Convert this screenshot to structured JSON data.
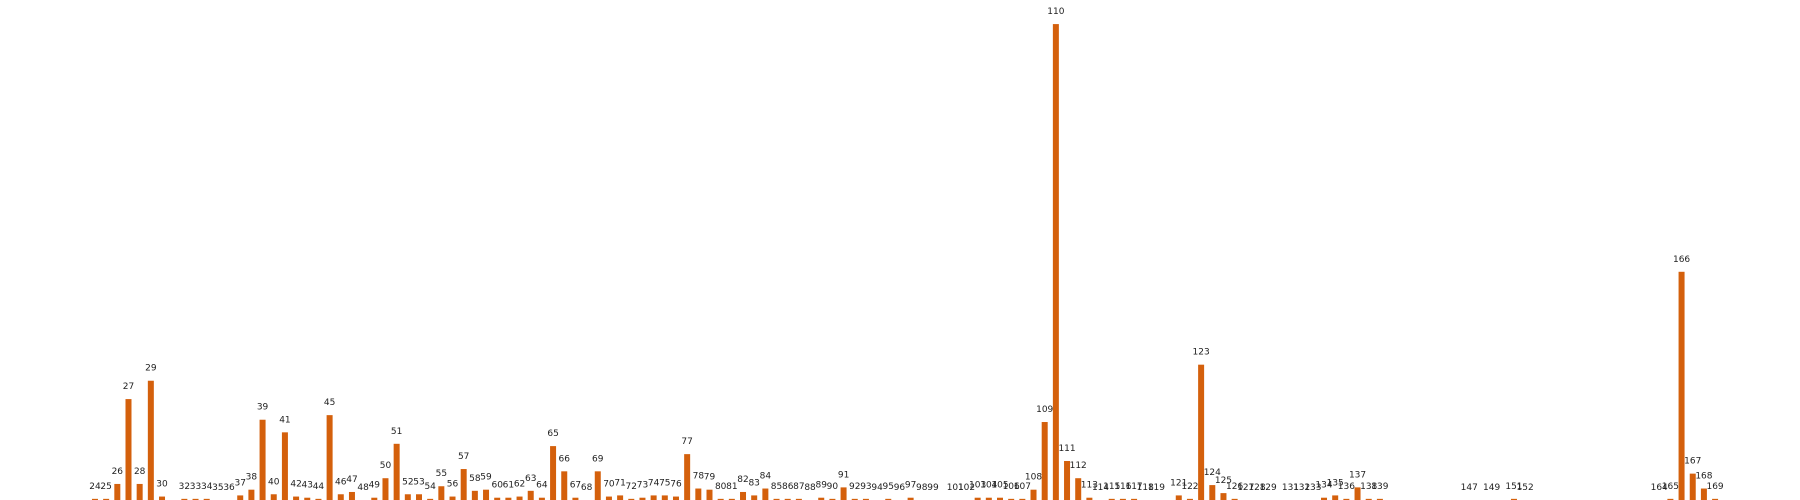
{
  "chart_data": {
    "type": "bar",
    "color": "#d4600c",
    "x": [
      24,
      25,
      26,
      27,
      28,
      29,
      30,
      32,
      33,
      34,
      35,
      36,
      37,
      38,
      39,
      40,
      41,
      42,
      43,
      44,
      45,
      46,
      47,
      48,
      49,
      50,
      51,
      52,
      53,
      54,
      55,
      56,
      57,
      58,
      59,
      60,
      61,
      62,
      63,
      64,
      65,
      66,
      67,
      68,
      69,
      70,
      71,
      72,
      73,
      74,
      75,
      76,
      77,
      78,
      79,
      80,
      81,
      82,
      83,
      84,
      85,
      86,
      87,
      88,
      89,
      90,
      91,
      92,
      93,
      94,
      95,
      96,
      97,
      98,
      99,
      101,
      102,
      103,
      104,
      105,
      106,
      107,
      108,
      109,
      110,
      111,
      112,
      113,
      114,
      115,
      116,
      117,
      118,
      119,
      121,
      122,
      123,
      124,
      125,
      126,
      127,
      128,
      129,
      131,
      132,
      133,
      134,
      135,
      136,
      137,
      138,
      139,
      147,
      149,
      151,
      152,
      164,
      165,
      166,
      167,
      168,
      169
    ],
    "values": [
      1,
      1,
      14,
      88,
      14,
      104,
      3,
      1,
      1,
      1,
      0,
      0,
      4,
      9,
      70,
      5,
      59,
      3,
      2,
      1,
      74,
      5,
      7,
      0,
      2,
      19,
      49,
      5,
      5,
      1,
      12,
      3,
      27,
      8,
      9,
      2,
      2,
      3,
      8,
      2,
      47,
      25,
      2,
      0,
      25,
      3,
      4,
      1,
      2,
      4,
      4,
      3,
      40,
      10,
      9,
      1,
      1,
      7,
      4,
      10,
      1,
      1,
      1,
      0,
      2,
      1,
      11,
      1,
      1,
      0,
      1,
      0,
      2,
      0,
      0,
      0,
      0,
      2,
      2,
      2,
      1,
      1,
      9,
      68,
      415,
      34,
      19,
      2,
      0,
      1,
      1,
      1,
      0,
      0,
      4,
      1,
      118,
      13,
      6,
      1,
      0,
      0,
      0,
      0,
      0,
      0,
      2,
      4,
      1,
      11,
      1,
      1,
      0,
      0,
      1,
      0,
      0,
      1,
      199,
      23,
      10,
      1
    ],
    "xlim": [
      15.5,
      176.6
    ],
    "ylim": [
      0,
      436
    ]
  }
}
